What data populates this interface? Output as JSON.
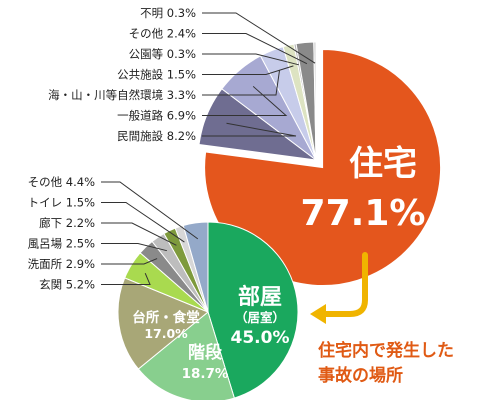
{
  "chart_data": [
    {
      "type": "pie",
      "slices": [
        {
          "label": "住宅",
          "value_text": "77.1%",
          "value": 77.1,
          "color": "#e4561d"
        },
        {
          "label": "民間施設",
          "value_text": "8.2%",
          "value": 8.2,
          "color": "#6f6d91"
        },
        {
          "label": "一般道路",
          "value_text": "6.9%",
          "value": 6.9,
          "color": "#a7a9d2"
        },
        {
          "label": "海・山・川等自然環境",
          "value_text": "3.3%",
          "value": 3.3,
          "color": "#c7ccea"
        },
        {
          "label": "公共施設",
          "value_text": "1.5%",
          "value": 1.5,
          "color": "#dde3c2"
        },
        {
          "label": "公園等",
          "value_text": "0.3%",
          "value": 0.3,
          "color": "#b8b8b8"
        },
        {
          "label": "その他",
          "value_text": "2.4%",
          "value": 2.4,
          "color": "#8a8a8a"
        },
        {
          "label": "不明",
          "value_text": "0.3%",
          "value": 0.3,
          "color": "#cfcfcf"
        }
      ]
    },
    {
      "type": "pie",
      "slices": [
        {
          "label": "部屋",
          "sublabel": "（居室）",
          "value_text": "45.0%",
          "value": 45.0,
          "color": "#1aa85e"
        },
        {
          "label": "階段",
          "value_text": "18.7%",
          "value": 18.7,
          "color": "#88cf8e"
        },
        {
          "label": "台所・食堂",
          "value_text": "17.0%",
          "value": 17.0,
          "color": "#a8a777"
        },
        {
          "label": "玄関",
          "value_text": "5.2%",
          "value": 5.2,
          "color": "#a9da4f"
        },
        {
          "label": "洗面所",
          "value_text": "2.9%",
          "value": 2.9,
          "color": "#8a8a8a"
        },
        {
          "label": "風呂場",
          "value_text": "2.5%",
          "value": 2.5,
          "color": "#bdbdbd"
        },
        {
          "label": "廊下",
          "value_text": "2.2%",
          "value": 2.2,
          "color": "#7e9a3c"
        },
        {
          "label": "トイレ",
          "value_text": "1.5%",
          "value": 1.5,
          "color": "#d7d7d7"
        },
        {
          "label": "その他",
          "value_text": "4.4%",
          "value": 4.4,
          "color": "#94a9c9"
        }
      ]
    }
  ],
  "caption": "住宅内で発生した事故の場所",
  "caption_lines": [
    "住宅内で発生した",
    "事故の場所"
  ],
  "arrow_color": "#f0b400",
  "leader_color": "#333333"
}
